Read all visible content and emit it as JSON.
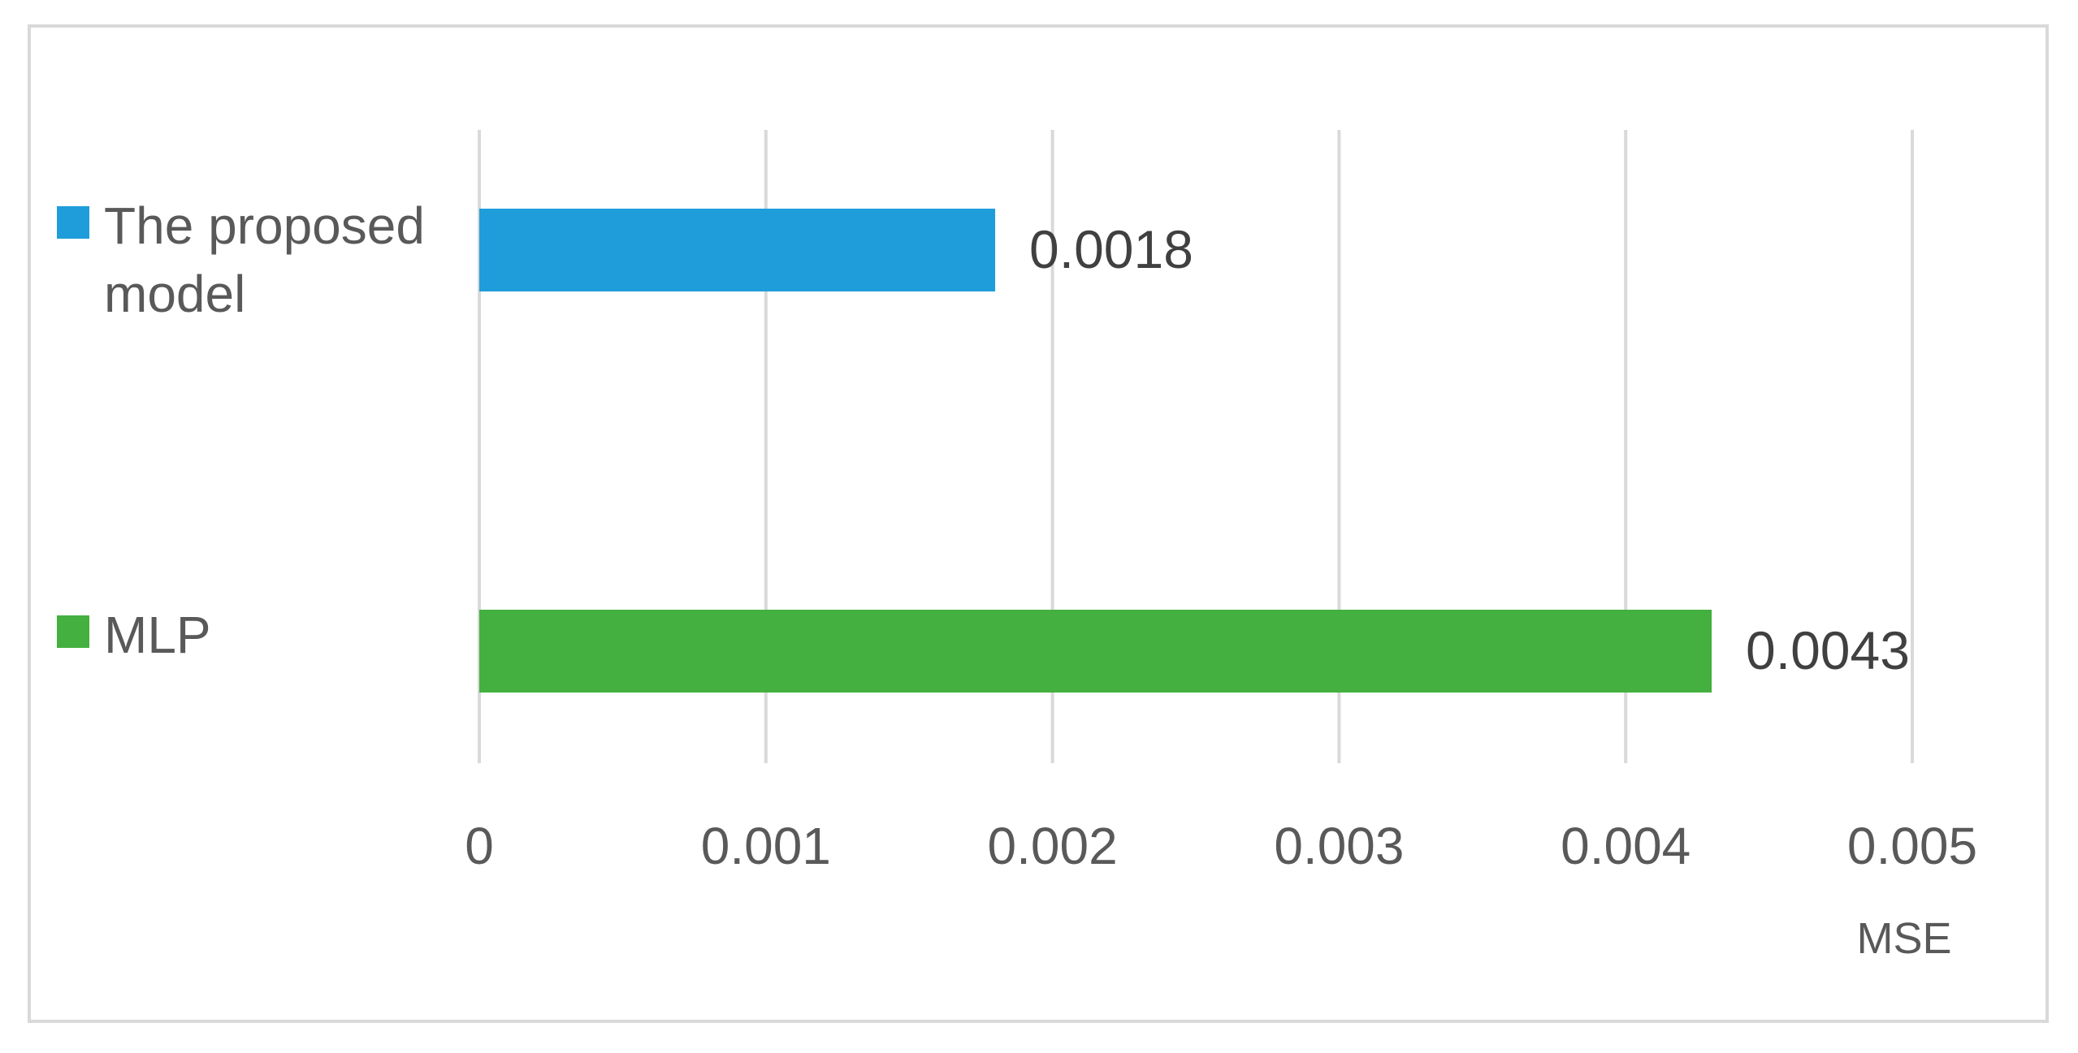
{
  "chart_data": {
    "type": "bar",
    "orientation": "horizontal",
    "categories": [
      "The proposed model",
      "MLP"
    ],
    "series": [
      {
        "category": "The proposed model",
        "legend_lines": [
          "The proposed",
          "model"
        ],
        "value": 0.0018,
        "value_label": "0.0018",
        "color": "#1f9ddb"
      },
      {
        "category": "MLP",
        "legend_lines": [
          "MLP"
        ],
        "value": 0.0043,
        "value_label": "0.0043",
        "color": "#43b03f"
      }
    ],
    "xlabel": "MSE",
    "ylabel": "",
    "xlim": [
      0,
      0.005
    ],
    "ticks": [
      {
        "value": 0,
        "label": "0"
      },
      {
        "value": 0.001,
        "label": "0.001"
      },
      {
        "value": 0.002,
        "label": "0.002"
      },
      {
        "value": 0.003,
        "label": "0.003"
      },
      {
        "value": 0.004,
        "label": "0.004"
      },
      {
        "value": 0.005,
        "label": "0.005"
      }
    ],
    "grid": true,
    "grid_color": "#d9d9d9",
    "legend_position": "left"
  }
}
